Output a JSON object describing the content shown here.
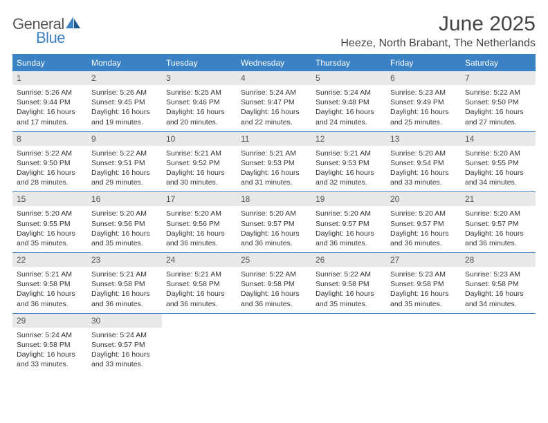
{
  "logo": {
    "word1": "General",
    "word2": "Blue"
  },
  "header": {
    "title": "June 2025",
    "location": "Heeze, North Brabant, The Netherlands"
  },
  "colors": {
    "accent": "#3b82c4",
    "header_bg": "#3b82c4",
    "daynum_bg": "#e8e8e8",
    "text": "#333333"
  },
  "day_names": [
    "Sunday",
    "Monday",
    "Tuesday",
    "Wednesday",
    "Thursday",
    "Friday",
    "Saturday"
  ],
  "days": [
    {
      "n": "1",
      "sunrise": "5:26 AM",
      "sunset": "9:44 PM",
      "dl_h": "16",
      "dl_m": "17"
    },
    {
      "n": "2",
      "sunrise": "5:26 AM",
      "sunset": "9:45 PM",
      "dl_h": "16",
      "dl_m": "19"
    },
    {
      "n": "3",
      "sunrise": "5:25 AM",
      "sunset": "9:46 PM",
      "dl_h": "16",
      "dl_m": "20"
    },
    {
      "n": "4",
      "sunrise": "5:24 AM",
      "sunset": "9:47 PM",
      "dl_h": "16",
      "dl_m": "22"
    },
    {
      "n": "5",
      "sunrise": "5:24 AM",
      "sunset": "9:48 PM",
      "dl_h": "16",
      "dl_m": "24"
    },
    {
      "n": "6",
      "sunrise": "5:23 AM",
      "sunset": "9:49 PM",
      "dl_h": "16",
      "dl_m": "25"
    },
    {
      "n": "7",
      "sunrise": "5:22 AM",
      "sunset": "9:50 PM",
      "dl_h": "16",
      "dl_m": "27"
    },
    {
      "n": "8",
      "sunrise": "5:22 AM",
      "sunset": "9:50 PM",
      "dl_h": "16",
      "dl_m": "28"
    },
    {
      "n": "9",
      "sunrise": "5:22 AM",
      "sunset": "9:51 PM",
      "dl_h": "16",
      "dl_m": "29"
    },
    {
      "n": "10",
      "sunrise": "5:21 AM",
      "sunset": "9:52 PM",
      "dl_h": "16",
      "dl_m": "30"
    },
    {
      "n": "11",
      "sunrise": "5:21 AM",
      "sunset": "9:53 PM",
      "dl_h": "16",
      "dl_m": "31"
    },
    {
      "n": "12",
      "sunrise": "5:21 AM",
      "sunset": "9:53 PM",
      "dl_h": "16",
      "dl_m": "32"
    },
    {
      "n": "13",
      "sunrise": "5:20 AM",
      "sunset": "9:54 PM",
      "dl_h": "16",
      "dl_m": "33"
    },
    {
      "n": "14",
      "sunrise": "5:20 AM",
      "sunset": "9:55 PM",
      "dl_h": "16",
      "dl_m": "34"
    },
    {
      "n": "15",
      "sunrise": "5:20 AM",
      "sunset": "9:55 PM",
      "dl_h": "16",
      "dl_m": "35"
    },
    {
      "n": "16",
      "sunrise": "5:20 AM",
      "sunset": "9:56 PM",
      "dl_h": "16",
      "dl_m": "35"
    },
    {
      "n": "17",
      "sunrise": "5:20 AM",
      "sunset": "9:56 PM",
      "dl_h": "16",
      "dl_m": "36"
    },
    {
      "n": "18",
      "sunrise": "5:20 AM",
      "sunset": "9:57 PM",
      "dl_h": "16",
      "dl_m": "36"
    },
    {
      "n": "19",
      "sunrise": "5:20 AM",
      "sunset": "9:57 PM",
      "dl_h": "16",
      "dl_m": "36"
    },
    {
      "n": "20",
      "sunrise": "5:20 AM",
      "sunset": "9:57 PM",
      "dl_h": "16",
      "dl_m": "36"
    },
    {
      "n": "21",
      "sunrise": "5:20 AM",
      "sunset": "9:57 PM",
      "dl_h": "16",
      "dl_m": "36"
    },
    {
      "n": "22",
      "sunrise": "5:21 AM",
      "sunset": "9:58 PM",
      "dl_h": "16",
      "dl_m": "36"
    },
    {
      "n": "23",
      "sunrise": "5:21 AM",
      "sunset": "9:58 PM",
      "dl_h": "16",
      "dl_m": "36"
    },
    {
      "n": "24",
      "sunrise": "5:21 AM",
      "sunset": "9:58 PM",
      "dl_h": "16",
      "dl_m": "36"
    },
    {
      "n": "25",
      "sunrise": "5:22 AM",
      "sunset": "9:58 PM",
      "dl_h": "16",
      "dl_m": "36"
    },
    {
      "n": "26",
      "sunrise": "5:22 AM",
      "sunset": "9:58 PM",
      "dl_h": "16",
      "dl_m": "35"
    },
    {
      "n": "27",
      "sunrise": "5:23 AM",
      "sunset": "9:58 PM",
      "dl_h": "16",
      "dl_m": "35"
    },
    {
      "n": "28",
      "sunrise": "5:23 AM",
      "sunset": "9:58 PM",
      "dl_h": "16",
      "dl_m": "34"
    },
    {
      "n": "29",
      "sunrise": "5:24 AM",
      "sunset": "9:58 PM",
      "dl_h": "16",
      "dl_m": "33"
    },
    {
      "n": "30",
      "sunrise": "5:24 AM",
      "sunset": "9:57 PM",
      "dl_h": "16",
      "dl_m": "33"
    }
  ],
  "labels": {
    "sunrise": "Sunrise: ",
    "sunset": "Sunset: ",
    "daylight_prefix": "Daylight: ",
    "hours_word": " hours",
    "and_word": "and ",
    "minutes_word": " minutes."
  },
  "layout": {
    "weeks": 5,
    "start_weekday": 0,
    "trailing_empty": 5
  }
}
